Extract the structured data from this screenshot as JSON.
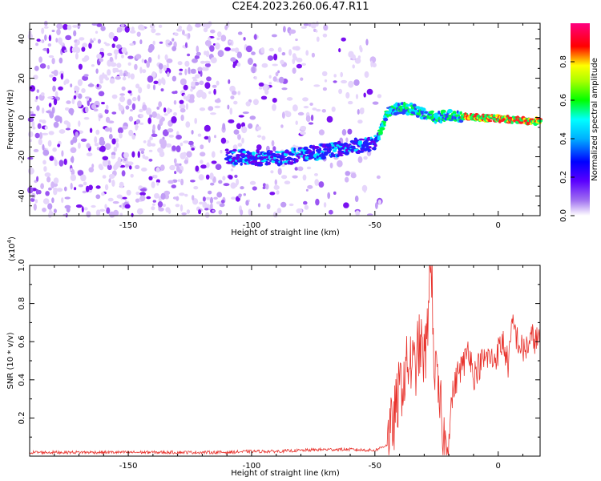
{
  "page_title": "C2E4.2023.260.06.47.R11",
  "chart_data": [
    {
      "type": "heatmap",
      "title": "C2E4.2023.260.06.47.R11",
      "xlabel": "Height of straight line (km)",
      "ylabel": "Frequency (Hz)",
      "xlim": [
        -190,
        17
      ],
      "ylim": [
        -50,
        48
      ],
      "x_ticks": [
        -150,
        -100,
        -50,
        0
      ],
      "y_ticks": [
        -40,
        -20,
        0,
        20,
        40
      ],
      "grid": false,
      "colorbar": {
        "label": "Normalized spectral amplitude",
        "range": [
          0,
          1
        ],
        "ticks": [
          0.0,
          0.2,
          0.4,
          0.6,
          0.8
        ],
        "colormap": [
          "#ffffff",
          "#d9b8f8",
          "#7a00f0",
          "#0000ff",
          "#00ffff",
          "#00ff00",
          "#ffff00",
          "#ff0000",
          "#ff0080"
        ]
      },
      "ridge": {
        "x": [
          -110,
          -100,
          -90,
          -80,
          -70,
          -60,
          -50,
          -48,
          -45,
          -40,
          -35,
          -30,
          -25,
          -20,
          -10,
          0,
          10,
          17
        ],
        "y": [
          -20,
          -20.5,
          -21,
          -19,
          -17,
          -15,
          -13,
          -8,
          3,
          5,
          4,
          2,
          0,
          1,
          0,
          -0.5,
          -1.5,
          -2
        ]
      }
    },
    {
      "type": "line",
      "xlabel": "Height of straight line (km)",
      "ylabel": "SNR (10 * v/v)",
      "y_multiplier": "(x10",
      "y_multiplier_exp": "4",
      "y_multiplier_close": ")",
      "xlim": [
        -190,
        17
      ],
      "ylim": [
        0,
        1.0
      ],
      "x_ticks": [
        -150,
        -100,
        -50,
        0
      ],
      "y_ticks": [
        0.2,
        0.4,
        0.6,
        0.8,
        1.0
      ],
      "grid": false,
      "series": [
        {
          "color": "#e8332d",
          "x": [
            -190,
            -170,
            -150,
            -130,
            -110,
            -100,
            -90,
            -80,
            -70,
            -60,
            -50,
            -45,
            -42,
            -40,
            -38,
            -36,
            -34,
            -32,
            -30,
            -29,
            -28,
            -27,
            -26,
            -25,
            -24,
            -23,
            -22,
            -21,
            -20,
            -19,
            -18,
            -16,
            -14,
            -12,
            -10,
            -8,
            -6,
            -4,
            -2,
            0,
            2,
            4,
            6,
            8,
            10,
            12,
            14,
            17
          ],
          "y": [
            0.02,
            0.02,
            0.02,
            0.02,
            0.02,
            0.025,
            0.025,
            0.03,
            0.035,
            0.035,
            0.03,
            0.06,
            0.2,
            0.35,
            0.42,
            0.5,
            0.45,
            0.58,
            0.52,
            0.55,
            0.95,
            1.0,
            0.5,
            0.38,
            0.28,
            0.2,
            0.08,
            0.03,
            0.12,
            0.28,
            0.35,
            0.45,
            0.48,
            0.58,
            0.42,
            0.47,
            0.5,
            0.52,
            0.5,
            0.55,
            0.6,
            0.48,
            0.7,
            0.6,
            0.55,
            0.58,
            0.62,
            0.6
          ]
        }
      ]
    }
  ]
}
